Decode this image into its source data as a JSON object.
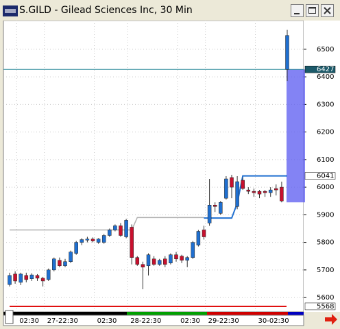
{
  "window_title": "S.GILD - Gilead Sciences Inc, 30 Min",
  "chart_data": {
    "type": "candlestick",
    "categories": [
      null,
      null,
      "02:30",
      null,
      null,
      null,
      null,
      "27-22:30",
      null,
      null,
      null,
      null,
      null,
      null,
      null,
      null,
      "02:30",
      null,
      null,
      null,
      null,
      null,
      "28-22:30",
      null,
      null,
      null,
      null,
      null,
      null,
      null,
      null,
      "02:30",
      null,
      null,
      null,
      null,
      "29-22:30",
      null,
      null,
      null,
      null,
      null,
      null,
      null,
      null,
      "30-02:30",
      null,
      null,
      null,
      null,
      null
    ],
    "open": [
      5647,
      5685,
      5655,
      5680,
      5668,
      5680,
      5670,
      5665,
      5700,
      5735,
      5715,
      5730,
      5760,
      5800,
      5808,
      5812,
      5800,
      5800,
      5825,
      5845,
      5860,
      5820,
      5855,
      5745,
      5720,
      5715,
      5740,
      5720,
      5740,
      5725,
      5755,
      5750,
      5735,
      5745,
      5790,
      5845,
      5870,
      5935,
      5905,
      5960,
      6035,
      5930,
      6025,
      5990,
      5985,
      5985,
      5985,
      5980,
      5995,
      6000,
      6427
    ],
    "high": [
      5690,
      5695,
      5690,
      5690,
      5688,
      5685,
      5675,
      5705,
      5745,
      5745,
      5740,
      5770,
      5805,
      5815,
      5820,
      5818,
      5815,
      5830,
      5850,
      5865,
      5870,
      5885,
      5865,
      5750,
      5730,
      5760,
      5750,
      5740,
      5750,
      5760,
      5765,
      5755,
      5750,
      5805,
      5845,
      5860,
      6030,
      5945,
      5950,
      6040,
      6045,
      6040,
      6035,
      6000,
      5995,
      5990,
      5990,
      6000,
      6010,
      6020,
      6570
    ],
    "low": [
      5640,
      5650,
      5645,
      5655,
      5660,
      5660,
      5640,
      5660,
      5695,
      5710,
      5710,
      5725,
      5755,
      5790,
      5800,
      5800,
      5795,
      5795,
      5820,
      5840,
      5820,
      5815,
      5720,
      5715,
      5630,
      5680,
      5715,
      5715,
      5710,
      5720,
      5730,
      5725,
      5710,
      5740,
      5785,
      5810,
      5860,
      5910,
      5900,
      5955,
      5960,
      5920,
      5990,
      5975,
      5965,
      5960,
      5965,
      5965,
      5970,
      5945,
      6385
    ],
    "close": [
      5680,
      5660,
      5685,
      5665,
      5682,
      5670,
      5660,
      5700,
      5740,
      5715,
      5730,
      5765,
      5800,
      5810,
      5812,
      5805,
      5812,
      5825,
      5845,
      5860,
      5825,
      5880,
      5745,
      5720,
      5710,
      5755,
      5720,
      5735,
      5720,
      5755,
      5740,
      5735,
      5745,
      5800,
      5840,
      5820,
      5935,
      5930,
      5945,
      6030,
      6000,
      6020,
      5995,
      5985,
      5980,
      5975,
      5980,
      5990,
      5990,
      5950,
      6550
    ],
    "up_color": "#1f6fd0",
    "down_color": "#c8102e",
    "series": [
      {
        "color": "#b0b0b0",
        "values": [
          5845,
          5845,
          5845,
          5845,
          5845,
          5845,
          5845,
          5845,
          5845,
          5845,
          5845,
          5845,
          5845,
          5845,
          5845,
          5845,
          5845,
          5845,
          5845,
          5845,
          5845,
          5845,
          5845,
          5890,
          5890,
          5890,
          5890,
          5890,
          5890,
          5890,
          5890,
          5890,
          5890,
          5890,
          5890,
          5890,
          null,
          null,
          null,
          null,
          null,
          null,
          null,
          null,
          null,
          null,
          null,
          null,
          null,
          null,
          null
        ]
      },
      {
        "color": "#1f6fd0",
        "values": [
          null,
          null,
          null,
          null,
          null,
          null,
          null,
          null,
          null,
          null,
          null,
          null,
          null,
          null,
          null,
          null,
          null,
          null,
          null,
          null,
          null,
          null,
          null,
          null,
          null,
          null,
          null,
          null,
          null,
          null,
          null,
          null,
          null,
          null,
          null,
          5888,
          5888,
          5888,
          5888,
          5888,
          5888,
          5942,
          6041,
          6041,
          6041,
          6041,
          6041,
          6041,
          6041,
          6041,
          6041
        ]
      }
    ],
    "levels": [
      {
        "value": 6427,
        "color": "#2a8a9a",
        "label_fill": "#1c5a6a",
        "label_color": "#ffffff"
      },
      {
        "value": 6041,
        "color": null,
        "label_fill": "#ffffff",
        "label_color": "#000000"
      },
      {
        "value": 5568,
        "color": "#e01010",
        "label_fill": "#ffffff",
        "label_color": "#000000"
      }
    ],
    "zone": {
      "from": 5945,
      "to": 6427,
      "color": "#5a5af0"
    },
    "ylim": [
      5548,
      6604
    ],
    "yticks": [
      5600,
      5700,
      5800,
      5900,
      6000,
      6100,
      6200,
      6300,
      6400,
      6500
    ],
    "grid": true
  }
}
